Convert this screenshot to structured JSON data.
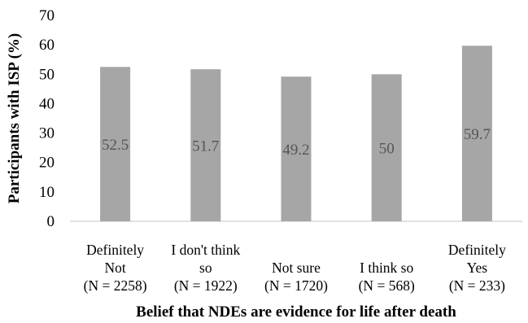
{
  "chart_data": {
    "type": "bar",
    "title": "",
    "xlabel": "Belief that NDEs are evidence for life after death",
    "ylabel": "Participants with ISP (%)",
    "ylim": [
      0,
      70
    ],
    "yticks": [
      0,
      10,
      20,
      30,
      40,
      50,
      60,
      70
    ],
    "grid": false,
    "legend": "none",
    "bar_color": "#a6a6a6",
    "categories": [
      [
        "Definitely",
        "Not",
        "(N = 2258)"
      ],
      [
        "I don't think",
        "so",
        "(N = 1922)"
      ],
      [
        "Not sure",
        "(N = 1720)"
      ],
      [
        "I think so",
        "(N = 568)"
      ],
      [
        "Definitely",
        "Yes",
        "(N = 233)"
      ]
    ],
    "values": [
      52.5,
      51.7,
      49.2,
      50,
      59.7
    ],
    "data_labels": [
      "52.5",
      "51.7",
      "49.2",
      "50",
      "59.7"
    ]
  }
}
